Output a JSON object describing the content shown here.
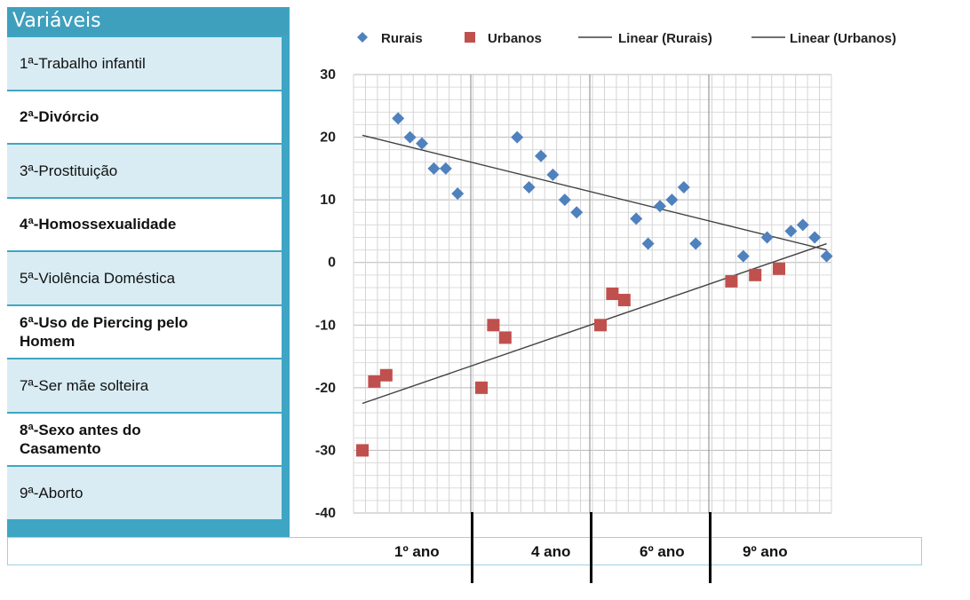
{
  "sidebar": {
    "header": "Variáveis",
    "items": [
      {
        "label": "1ª-Trabalho infantil"
      },
      {
        "label": "2ª-Divórcio"
      },
      {
        "label": "3ª-Prostituição"
      },
      {
        "label": "4ª-Homossexualidade"
      },
      {
        "label": "5ª-Violência Doméstica"
      },
      {
        "label": "6ª-Uso de Piercing pelo\n    Homem"
      },
      {
        "label": "7ª-Ser mãe solteira"
      },
      {
        "label": "8ª-Sexo antes do\n    Casamento"
      },
      {
        "label": "9ª-Aborto"
      }
    ]
  },
  "periods": [
    "1º ano",
    "4 ano",
    "6º ano",
    "9º ano"
  ],
  "colors": {
    "rurais": "#4f81bd",
    "urbanos": "#c0504d",
    "sidebar": "#3ea6c4",
    "row_alt": "#d9ecf3"
  },
  "chart_data": {
    "type": "scatter",
    "ylim": [
      -40,
      30
    ],
    "yticks": [
      30,
      20,
      10,
      0,
      -10,
      -20,
      -30,
      -40
    ],
    "x_count": 40,
    "grid": true,
    "legend_position": "top",
    "legend": [
      "Rurais",
      "Urbanos",
      "Linear (Rurais)",
      "Linear (Urbanos)"
    ],
    "series": [
      {
        "name": "Rurais",
        "marker": "diamond",
        "points": [
          [
            4,
            23
          ],
          [
            5,
            20
          ],
          [
            6,
            19
          ],
          [
            7,
            15
          ],
          [
            8,
            15
          ],
          [
            9,
            11
          ],
          [
            14,
            20
          ],
          [
            15,
            12
          ],
          [
            16,
            17
          ],
          [
            17,
            14
          ],
          [
            18,
            10
          ],
          [
            19,
            8
          ],
          [
            24,
            7
          ],
          [
            25,
            3
          ],
          [
            26,
            9
          ],
          [
            27,
            10
          ],
          [
            28,
            12
          ],
          [
            29,
            3
          ],
          [
            33,
            1
          ],
          [
            35,
            4
          ],
          [
            37,
            5
          ],
          [
            38,
            6
          ],
          [
            39,
            4
          ],
          [
            40,
            1
          ]
        ]
      },
      {
        "name": "Urbanos",
        "marker": "square",
        "points": [
          [
            1,
            -30
          ],
          [
            2,
            -19
          ],
          [
            3,
            -18
          ],
          [
            11,
            -20
          ],
          [
            12,
            -10
          ],
          [
            13,
            -12
          ],
          [
            21,
            -10
          ],
          [
            22,
            -5
          ],
          [
            23,
            -6
          ],
          [
            32,
            -3
          ],
          [
            34,
            -2
          ],
          [
            36,
            -1
          ]
        ]
      }
    ],
    "trendlines": [
      {
        "name": "Linear (Rurais)",
        "from": [
          1,
          20.3
        ],
        "to": [
          40,
          2
        ]
      },
      {
        "name": "Linear (Urbanos)",
        "from": [
          1,
          -22.5
        ],
        "to": [
          40,
          3
        ]
      }
    ]
  }
}
